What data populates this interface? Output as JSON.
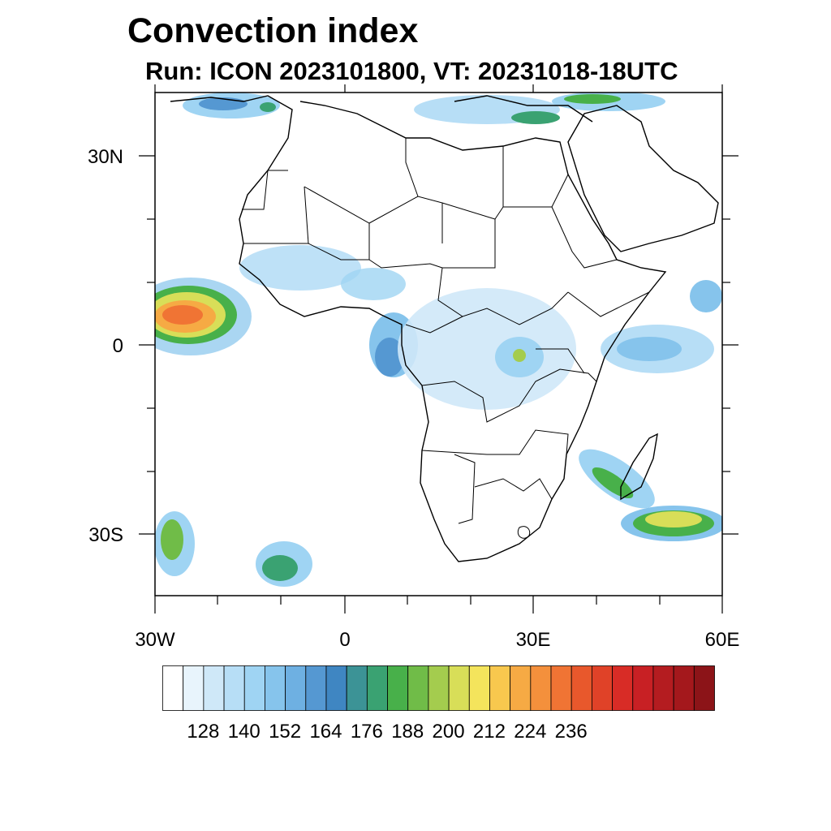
{
  "title": "Convection index",
  "subtitle": "Run: ICON 2023101800,  VT: 20231018-18UTC",
  "axes": {
    "y_labels": [
      "30N",
      "0",
      "30S"
    ],
    "x_labels": [
      "30W",
      "0",
      "30E",
      "60E"
    ]
  },
  "colorbar": {
    "colors": [
      "#ffffff",
      "#e8f4fc",
      "#cfe8f8",
      "#b7def6",
      "#9fd4f3",
      "#86c4ec",
      "#6eb0e2",
      "#5598d2",
      "#3f86c2",
      "#3c9396",
      "#3aa272",
      "#48b04a",
      "#70bc48",
      "#a4cc4e",
      "#d8de58",
      "#f4e45c",
      "#f8c84e",
      "#f6aa44",
      "#f4903c",
      "#f07434",
      "#e8582c",
      "#e04228",
      "#d82c26",
      "#c82024",
      "#b41c20",
      "#a4181c",
      "#8c1418"
    ],
    "tick_labels": [
      "128",
      "140",
      "152",
      "164",
      "176",
      "188",
      "200",
      "212",
      "224",
      "236"
    ]
  }
}
